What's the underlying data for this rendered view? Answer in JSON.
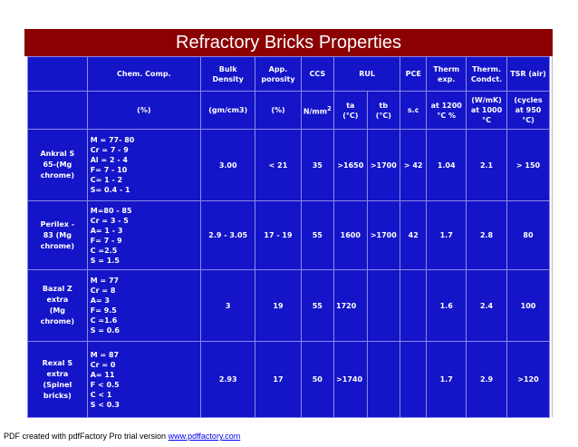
{
  "title": "Refractory Bricks Properties",
  "header1": {
    "comp": "Chem. Comp.",
    "bulk": [
      "Bulk",
      "Density"
    ],
    "app": [
      "App.",
      "porosity"
    ],
    "ccs": "CCS",
    "rul": "RUL",
    "pce": "PCE",
    "therm": [
      "Therm",
      "exp."
    ],
    "therm_c": [
      "Therm.",
      "Condct."
    ],
    "tsr": "TSR (air)"
  },
  "header2": {
    "comp": "(%)",
    "bulk": "(gm/cm3)",
    "app": "(%)",
    "ccs_unit": "N/mm",
    "ccs_sup": "2",
    "ta": [
      "ta",
      "(°C)"
    ],
    "tb": [
      "tb",
      "(°C)"
    ],
    "pce": "s.c",
    "therm": [
      "at 1200",
      "°C %"
    ],
    "therm_c": [
      "(W/mK)",
      "at 1000",
      "°C"
    ],
    "tsr": [
      "(cycles",
      "at 950",
      "°C)"
    ]
  },
  "rows": [
    {
      "name": [
        "Ankral S",
        "65-(Mg",
        "chrome)"
      ],
      "comp": [
        "M =  77- 80",
        "Cr = 7 - 9",
        "Al = 2 - 4",
        "F=   7 - 10",
        "C=  1 - 2",
        "S= 0.4 - 1"
      ],
      "bulk": "3.00",
      "app": "< 21",
      "ccs": "35",
      "ta": ">1650",
      "tb": ">1700",
      "pce": "> 42",
      "therm": "1.04",
      "therm_c": "2.1",
      "tsr": "> 150"
    },
    {
      "name": [
        "Perilex -",
        "83  (Mg",
        "chrome)"
      ],
      "comp": [
        "M=80 - 85",
        "Cr = 3 - 5",
        "A= 1 - 3",
        "F= 7 - 9",
        "C =2.5",
        "S = 1.5"
      ],
      "bulk": "2.9 - 3.05",
      "app": "17 - 19",
      "ccs": "55",
      "ta": "1600",
      "tb": ">1700",
      "pce": "42",
      "therm": "1.7",
      "therm_c": "2.8",
      "tsr": "80"
    },
    {
      "name": [
        "Bazal Z",
        "extra",
        "(Mg",
        "chrome)"
      ],
      "comp": [
        "M = 77",
        "Cr = 8",
        "A=  3",
        "F=  9.5",
        "C =1.6",
        "S = 0.6"
      ],
      "bulk": "3",
      "app": "19",
      "ccs": "55",
      "ta": "1720",
      "tb": "",
      "pce": "",
      "therm": "1.6",
      "therm_c": "2.4",
      "tsr": "100"
    },
    {
      "name": [
        "Rexal S",
        "extra",
        "(Spinel",
        "bricks)"
      ],
      "comp": [
        "M = 87",
        "Cr = 0",
        "A=  11",
        "F < 0.5",
        "C < 1",
        "S < 0.3"
      ],
      "bulk": "2.93",
      "app": "17",
      "ccs": "50",
      "ta": ">1740",
      "tb": "",
      "pce": "",
      "therm": "1.7",
      "therm_c": "2.9",
      "tsr": ">120"
    }
  ],
  "footer": {
    "text": "PDF created with pdfFactory Pro trial version ",
    "link": "www.pdffactory.com"
  }
}
